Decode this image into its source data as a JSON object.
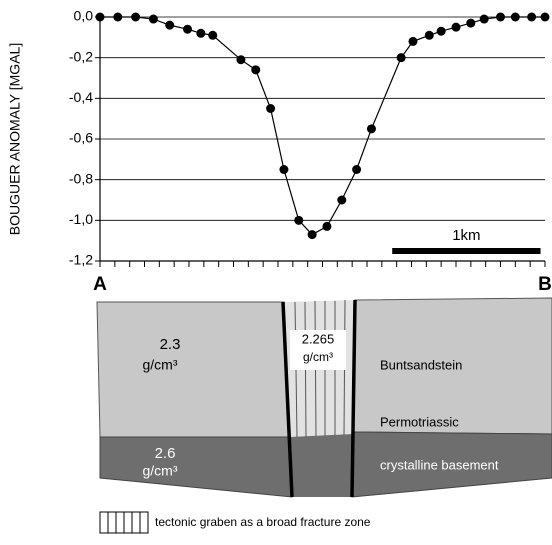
{
  "chart_data": {
    "type": "line",
    "y_label": "BOUGUER ANOMALY [MGAL]",
    "start_label": "A",
    "end_label": "B",
    "x": [
      0,
      0.12,
      0.24,
      0.36,
      0.47,
      0.59,
      0.68,
      0.76,
      0.95,
      1.05,
      1.15,
      1.24,
      1.34,
      1.43,
      1.53,
      1.63,
      1.73,
      1.83,
      2.03,
      2.11,
      2.22,
      2.3,
      2.4,
      2.5,
      2.59,
      2.7,
      2.8,
      2.91,
      3.0
    ],
    "values": [
      0,
      0,
      0,
      -0.01,
      -0.04,
      -0.06,
      -0.08,
      -0.09,
      -0.21,
      -0.26,
      -0.45,
      -0.75,
      -1.0,
      -1.07,
      -1.03,
      -0.9,
      -0.75,
      -0.55,
      -0.2,
      -0.12,
      -0.09,
      -0.07,
      -0.05,
      -0.03,
      -0.01,
      0,
      0,
      0,
      0
    ],
    "color": "#000000",
    "xlim": [
      0,
      3
    ],
    "x_tick_marks": [
      0,
      0.1,
      0.2,
      0.3,
      0.4,
      0.5,
      0.6,
      0.7,
      0.8,
      0.9,
      1,
      1.1,
      1.2,
      1.3,
      1.4,
      1.5,
      1.6,
      1.7,
      1.8,
      1.9,
      2,
      2.1,
      2.2,
      2.3,
      2.4,
      2.5,
      2.6,
      2.7,
      2.8,
      2.9,
      3
    ],
    "ylim": [
      -1.2,
      0
    ],
    "yticks": [
      {
        "value": 0,
        "label": "0,0"
      },
      {
        "value": -0.2,
        "label": "-0,2"
      },
      {
        "value": -0.4,
        "label": "-0,4"
      },
      {
        "value": -0.6,
        "label": "-0,6"
      },
      {
        "value": -0.8,
        "label": "-0,8"
      },
      {
        "value": -1.0,
        "label": "-1,0"
      },
      {
        "value": -1.2,
        "label": "-1,2"
      }
    ],
    "grid": true,
    "scale_bar": {
      "label": "1km",
      "start": 1.97,
      "length": 1
    }
  },
  "section": {
    "left_upper": {
      "density": "2.3",
      "unit": "g/cm³"
    },
    "graben": {
      "density": "2.265",
      "unit": "g/cm³"
    },
    "left_lower": {
      "density": "2.6",
      "unit": "g/cm³"
    },
    "right_upper": "Buntsandstein",
    "boundary": "Permotriassic",
    "right_lower": "crystalline basement",
    "legend": "tectonic graben as a broad fracture zone"
  }
}
